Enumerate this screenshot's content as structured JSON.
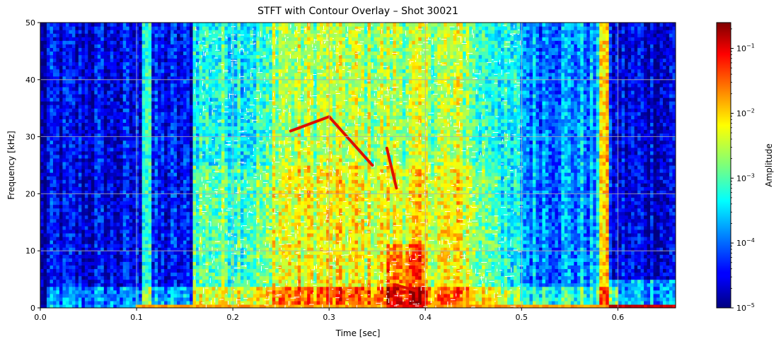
{
  "chart_data": {
    "type": "heatmap",
    "title": "STFT with Contour Overlay – Shot 30021",
    "xlabel": "Time [sec]",
    "ylabel": "Frequency [kHz]",
    "xlim": [
      0.0,
      0.66
    ],
    "ylim": [
      0,
      50
    ],
    "x_ticks": [
      0.0,
      0.1,
      0.2,
      0.3,
      0.4,
      0.5,
      0.6
    ],
    "x_tick_labels": [
      "0.0",
      "0.1",
      "0.2",
      "0.3",
      "0.4",
      "0.5",
      "0.6"
    ],
    "y_ticks": [
      0,
      10,
      20,
      30,
      40,
      50
    ],
    "y_tick_labels": [
      "0",
      "10",
      "20",
      "30",
      "40",
      "50"
    ],
    "grid": true,
    "colormap": "jet",
    "colorbar": {
      "label": "Amplitude",
      "scale": "log",
      "range": [
        1e-05,
        0.25
      ],
      "ticks": [
        1e-05,
        0.0001,
        0.001,
        0.01,
        0.1
      ],
      "tick_labels": [
        {
          "base": "10",
          "exp": "−5"
        },
        {
          "base": "10",
          "exp": "−4"
        },
        {
          "base": "10",
          "exp": "−3"
        },
        {
          "base": "10",
          "exp": "−2"
        },
        {
          "base": "10",
          "exp": "−1"
        }
      ]
    },
    "features": [
      {
        "t0": 0.26,
        "f0": 31,
        "t1": 0.3,
        "f1": 33.5
      },
      {
        "t0": 0.3,
        "f0": 33.5,
        "t1": 0.345,
        "f1": 25
      },
      {
        "t0": 0.36,
        "f0": 28,
        "t1": 0.37,
        "f1": 21
      },
      {
        "t0": 0.37,
        "f0": 4,
        "t1": 0.39,
        "f1": 3
      }
    ]
  }
}
